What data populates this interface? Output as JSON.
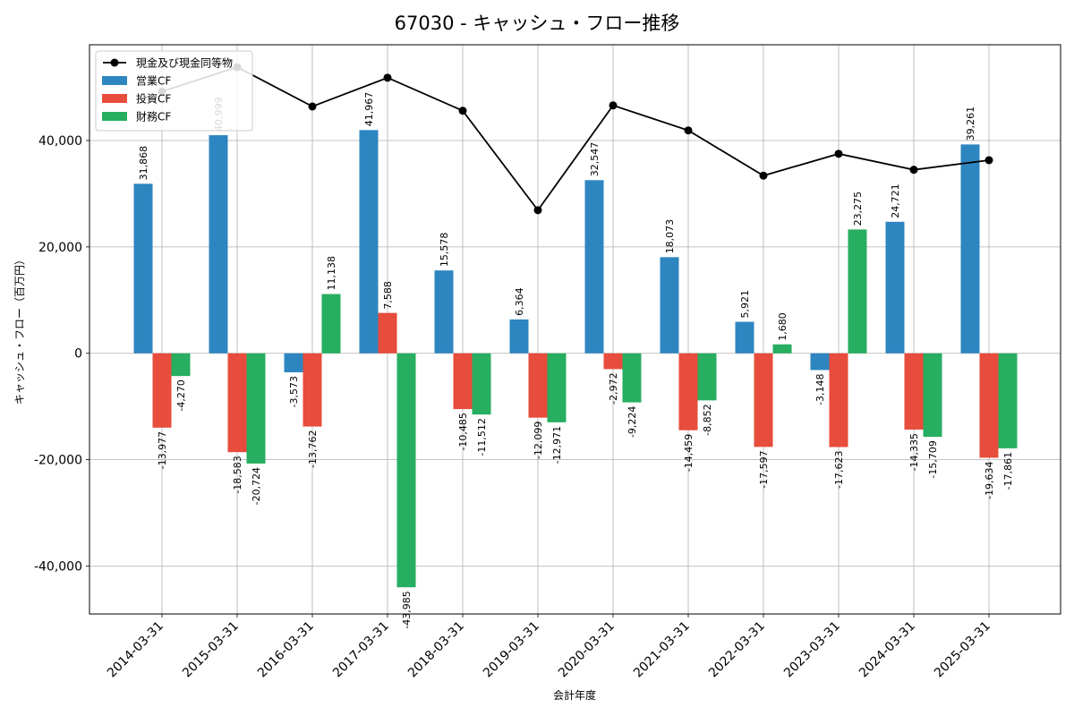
{
  "chart_data": {
    "type": "bar",
    "title": "67030 - キャッシュ・フロー推移",
    "xlabel": "会計年度",
    "ylabel": "キャッシュ・フロー（百万円）",
    "ylim": [
      -49000,
      58000
    ],
    "yticks": [
      -40000,
      -20000,
      0,
      20000,
      40000
    ],
    "ytick_labels": [
      "-40,000",
      "-20,000",
      "0",
      "20,000",
      "40,000"
    ],
    "grid": true,
    "legend_position": "top-left",
    "categories": [
      "2014-03-31",
      "2015-03-31",
      "2016-03-31",
      "2017-03-31",
      "2018-03-31",
      "2019-03-31",
      "2020-03-31",
      "2021-03-31",
      "2022-03-31",
      "2023-03-31",
      "2024-03-31",
      "2025-03-31"
    ],
    "series": [
      {
        "name": "営業CF",
        "type": "bar",
        "color": "#2e86c1",
        "values": [
          31868,
          40999,
          -3573,
          41967,
          15578,
          6364,
          32547,
          18073,
          5921,
          -3148,
          24721,
          39261
        ],
        "labels": [
          "31,868",
          "40,999",
          "-3,573",
          "41,967",
          "15,578",
          "6,364",
          "32,547",
          "18,073",
          "5,921",
          "-3,148",
          "24,721",
          "39,261"
        ]
      },
      {
        "name": "投資CF",
        "type": "bar",
        "color": "#e74c3c",
        "values": [
          -13977,
          -18583,
          -13762,
          7588,
          -10485,
          -12099,
          -2972,
          -14459,
          -17597,
          -17623,
          -14335,
          -19634
        ],
        "labels": [
          "-13,977",
          "-18,583",
          "-13,762",
          "7,588",
          "-10,485",
          "-12,099",
          "-2,972",
          "-14,459",
          "-17,597",
          "-17,623",
          "-14,335",
          "-19,634"
        ]
      },
      {
        "name": "財務CF",
        "type": "bar",
        "color": "#27ae60",
        "values": [
          -4270,
          -20724,
          11138,
          -43985,
          -11512,
          -12971,
          -9224,
          -8852,
          1680,
          23275,
          -15709,
          -17861
        ],
        "labels": [
          "-4,270",
          "-20,724",
          "11,138",
          "-43,985",
          "-11,512",
          "-12,971",
          "-9,224",
          "-8,852",
          "1,680",
          "23,275",
          "-15,709",
          "-17,861"
        ]
      },
      {
        "name": "現金及び現金同等物",
        "type": "line",
        "color": "#000000",
        "values": [
          49200,
          53800,
          46400,
          51800,
          45600,
          26900,
          46600,
          41900,
          33400,
          37500,
          34500,
          36300
        ]
      }
    ]
  }
}
